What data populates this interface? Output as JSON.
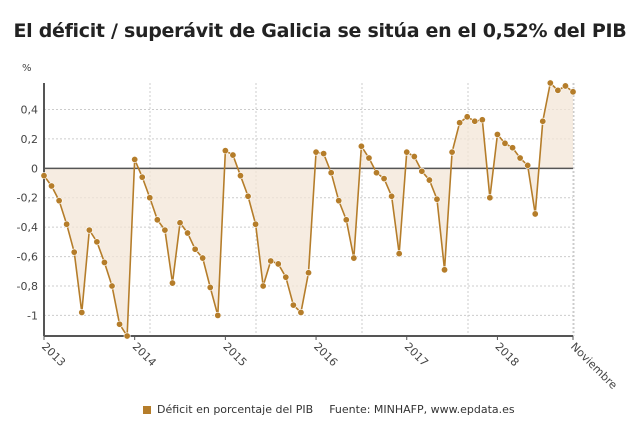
{
  "chart_data": {
    "type": "line",
    "title": "El déficit / superávit de Galicia se sitúa en el 0,52% del PIB",
    "ylabel": "%",
    "xlabel": "",
    "ylim": [
      -1.14,
      0.58
    ],
    "yticks": [
      0.4,
      0.2,
      0,
      -0.2,
      -0.4,
      -0.6,
      -0.8,
      -1
    ],
    "ytick_labels": [
      "0,4",
      "0,2",
      "0",
      "-0,2",
      "-0,4",
      "-0,6",
      "-0,8",
      "-1"
    ],
    "xtick_labels": [
      {
        "label": "2013",
        "index": 0
      },
      {
        "label": "2014",
        "index": 12
      },
      {
        "label": "2015",
        "index": 24
      },
      {
        "label": "2016",
        "index": 36
      },
      {
        "label": "2017",
        "index": 48
      },
      {
        "label": "2018",
        "index": 60
      },
      {
        "label": "Noviembre",
        "index": 70
      }
    ],
    "grid": true,
    "legend_position": "bottom",
    "color": "#b57d2a",
    "fill_color": "#f3e6d7",
    "series": [
      {
        "name": "Déficit en porcentaje del PIB",
        "values": [
          -0.05,
          -0.12,
          -0.22,
          -0.38,
          -0.57,
          -0.98,
          -0.42,
          -0.5,
          -0.64,
          -0.8,
          -1.06,
          -1.14,
          0.06,
          -0.06,
          -0.2,
          -0.35,
          -0.42,
          -0.78,
          -0.37,
          -0.44,
          -0.55,
          -0.61,
          -0.81,
          -1.0,
          0.12,
          0.09,
          -0.05,
          -0.19,
          -0.38,
          -0.8,
          -0.63,
          -0.65,
          -0.74,
          -0.93,
          -0.98,
          -0.71,
          0.11,
          0.1,
          -0.03,
          -0.22,
          -0.35,
          -0.61,
          0.15,
          0.07,
          -0.03,
          -0.07,
          -0.19,
          -0.58,
          0.11,
          0.08,
          -0.02,
          -0.08,
          -0.21,
          -0.69,
          0.11,
          0.31,
          0.35,
          0.32,
          0.33,
          -0.2,
          0.23,
          0.17,
          0.14,
          0.07,
          0.02,
          -0.31,
          0.32,
          0.58,
          0.53,
          0.56,
          0.52
        ]
      }
    ]
  },
  "legend": {
    "series_label": "Déficit en porcentaje del PIB",
    "source": "Fuente: MINHAFP, www.epdata.es"
  }
}
